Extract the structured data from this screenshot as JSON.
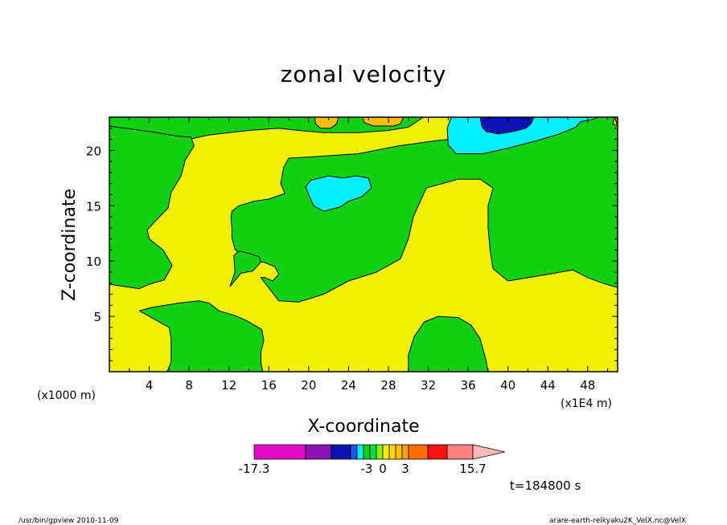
{
  "chart_data": {
    "type": "heatmap",
    "title": "zonal velocity",
    "xlabel": "X-coordinate",
    "ylabel": "Z-coordinate",
    "x_unit_label": "(x1E4 m)",
    "y_unit_label": "(x1000 m)",
    "xlim": [
      0,
      51
    ],
    "ylim": [
      0,
      23
    ],
    "xticks": [
      4,
      8,
      12,
      16,
      20,
      24,
      28,
      32,
      36,
      40,
      44,
      48
    ],
    "yticks": [
      5,
      10,
      15,
      20
    ],
    "grid": false,
    "regions": [
      {
        "name": "yellow",
        "polygon": [
          [
            0,
            0
          ],
          [
            51,
            0
          ],
          [
            51,
            23
          ],
          [
            0,
            23
          ]
        ]
      },
      {
        "name": "green",
        "polygon": [
          [
            0,
            22
          ],
          [
            3,
            21.6
          ],
          [
            8,
            21
          ],
          [
            10,
            21.4
          ],
          [
            14,
            21.8
          ],
          [
            17,
            22
          ],
          [
            19,
            21.8
          ],
          [
            21.5,
            21.6
          ],
          [
            25,
            21.6
          ],
          [
            28,
            21.8
          ],
          [
            30,
            22.1
          ],
          [
            31.5,
            23
          ],
          [
            0,
            23
          ]
        ]
      },
      {
        "name": "green",
        "polygon": [
          [
            0,
            7.9
          ],
          [
            3,
            7.5
          ],
          [
            4,
            7.9
          ],
          [
            5.5,
            8.3
          ],
          [
            6.3,
            9.6
          ],
          [
            5.4,
            11
          ],
          [
            4,
            12
          ],
          [
            3.8,
            12.8
          ],
          [
            4.6,
            13.6
          ],
          [
            5.9,
            14.8
          ],
          [
            6.2,
            16.2
          ],
          [
            7.2,
            17.7
          ],
          [
            7.6,
            19.1
          ],
          [
            8.5,
            20.4
          ],
          [
            8.2,
            21.2
          ],
          [
            6.7,
            21.3
          ],
          [
            4.8,
            21.6
          ],
          [
            2.5,
            21.9
          ],
          [
            0,
            22.2
          ]
        ]
      },
      {
        "name": "green",
        "polygon": [
          [
            51,
            7.6
          ],
          [
            49.5,
            8
          ],
          [
            48,
            8.5
          ],
          [
            46.5,
            9.2
          ],
          [
            44,
            8.8
          ],
          [
            40,
            8.2
          ],
          [
            38.5,
            9.3
          ],
          [
            38.2,
            11
          ],
          [
            38,
            13
          ],
          [
            38,
            15
          ],
          [
            38.5,
            16.6
          ],
          [
            37.2,
            17.4
          ],
          [
            35,
            17.4
          ],
          [
            31.8,
            16.6
          ],
          [
            30.5,
            14
          ],
          [
            30,
            12
          ],
          [
            29.2,
            10.2
          ],
          [
            26.8,
            9
          ],
          [
            24,
            8.2
          ],
          [
            21.5,
            7
          ],
          [
            19,
            6.3
          ],
          [
            17,
            6.4
          ],
          [
            15.2,
            8.5
          ],
          [
            15.6,
            8.5
          ],
          [
            16.4,
            8.2
          ],
          [
            17,
            8.8
          ],
          [
            16.6,
            9.5
          ],
          [
            15.5,
            9.9
          ],
          [
            14.4,
            10
          ],
          [
            13.5,
            10.1
          ],
          [
            12.6,
            11.1
          ],
          [
            12.3,
            12.1
          ],
          [
            12.3,
            12.9
          ],
          [
            12.2,
            14
          ],
          [
            12.3,
            14.5
          ],
          [
            13,
            15
          ],
          [
            14.5,
            15.4
          ],
          [
            16,
            15.6
          ],
          [
            17.6,
            16.1
          ],
          [
            17.2,
            17
          ],
          [
            17.5,
            18.5
          ],
          [
            18,
            19.3
          ],
          [
            20,
            19.4
          ],
          [
            25,
            19.7
          ],
          [
            29,
            20.4
          ],
          [
            33,
            20.9
          ],
          [
            37,
            21.2
          ],
          [
            34.5,
            22
          ],
          [
            35.3,
            23
          ],
          [
            51,
            23
          ]
        ]
      },
      {
        "name": "green",
        "polygon": [
          [
            12.1,
            7.7
          ],
          [
            12.6,
            9
          ],
          [
            12.5,
            10.5
          ],
          [
            13,
            10.9
          ],
          [
            14,
            10.7
          ],
          [
            15,
            10.4
          ],
          [
            15.2,
            9.9
          ],
          [
            14.4,
            9.1
          ],
          [
            13.2,
            8.9
          ]
        ]
      },
      {
        "name": "green",
        "polygon": [
          [
            4.2,
            0
          ],
          [
            5.8,
            0
          ],
          [
            6.2,
            0.9
          ],
          [
            6.2,
            1.9
          ],
          [
            6.2,
            3
          ],
          [
            6,
            4
          ],
          [
            4,
            5
          ],
          [
            3,
            5.5
          ],
          [
            4.2,
            5.8
          ],
          [
            7,
            6.2
          ],
          [
            9,
            6.4
          ],
          [
            10,
            6.2
          ],
          [
            11,
            5.5
          ],
          [
            12.5,
            5.1
          ],
          [
            13.8,
            4.6
          ],
          [
            15.3,
            3.8
          ],
          [
            15.5,
            2.8
          ],
          [
            15.2,
            1.8
          ],
          [
            15.2,
            0.8
          ],
          [
            15.4,
            0
          ]
        ]
      },
      {
        "name": "green",
        "polygon": [
          [
            30,
            0
          ],
          [
            38,
            0
          ],
          [
            37.8,
            1
          ],
          [
            37.5,
            2
          ],
          [
            37.2,
            3
          ],
          [
            36.3,
            4.2
          ],
          [
            35,
            4.9
          ],
          [
            33,
            5
          ],
          [
            31.6,
            4.5
          ],
          [
            30.6,
            3.2
          ],
          [
            30,
            1.5
          ]
        ]
      },
      {
        "name": "cyan",
        "polygon": [
          [
            19.7,
            16.7
          ],
          [
            20.2,
            17.3
          ],
          [
            22,
            17.7
          ],
          [
            23.4,
            17.5
          ],
          [
            24.8,
            17.7
          ],
          [
            26,
            17.5
          ],
          [
            26.3,
            16.6
          ],
          [
            25.3,
            15.8
          ],
          [
            24,
            15.4
          ],
          [
            23.2,
            14.9
          ],
          [
            21.5,
            14.5
          ],
          [
            20.5,
            15
          ],
          [
            20,
            16
          ]
        ]
      },
      {
        "name": "cyan",
        "polygon": [
          [
            34.3,
            23
          ],
          [
            33.9,
            22
          ],
          [
            34,
            20.5
          ],
          [
            34.8,
            19.7
          ],
          [
            37.5,
            19.7
          ],
          [
            40,
            20.2
          ],
          [
            43,
            20.9
          ],
          [
            45.2,
            21.5
          ],
          [
            46.8,
            22.1
          ],
          [
            47.3,
            22.6
          ],
          [
            48.5,
            22.8
          ],
          [
            49,
            23
          ]
        ]
      },
      {
        "name": "blue",
        "polygon": [
          [
            37.2,
            23
          ],
          [
            37.4,
            22.1
          ],
          [
            37.8,
            21.7
          ],
          [
            39,
            21.5
          ],
          [
            40.5,
            21.7
          ],
          [
            41.8,
            22
          ],
          [
            42.3,
            22.4
          ],
          [
            42.6,
            23
          ]
        ]
      },
      {
        "name": "orange",
        "polygon": [
          [
            20.6,
            23
          ],
          [
            20.7,
            22.4
          ],
          [
            21.2,
            22
          ],
          [
            22.2,
            22
          ],
          [
            22.8,
            22.4
          ],
          [
            23,
            23
          ]
        ]
      },
      {
        "name": "orange",
        "polygon": [
          [
            25.4,
            23
          ],
          [
            25.6,
            22.5
          ],
          [
            26.5,
            22.2
          ],
          [
            28.5,
            22.2
          ],
          [
            29.2,
            22.4
          ],
          [
            29.5,
            23
          ]
        ]
      },
      {
        "name": "orange",
        "polygon": [
          [
            50.7,
            23
          ],
          [
            50.5,
            22.4
          ],
          [
            51,
            22.2
          ]
        ]
      }
    ],
    "colorbar": {
      "labels": [
        {
          "text": "-17.3",
          "value": -17.3
        },
        {
          "text": "-3",
          "value": -3
        },
        {
          "text": "0",
          "value": 0
        },
        {
          "text": "3",
          "value": 3
        },
        {
          "text": "15.7",
          "value": 15.7
        }
      ],
      "colors": [
        "#e80ac6",
        "#8a14b5",
        "#0a14b5",
        "#1955f0",
        "#00f0ff",
        "#10d010",
        "#00e050",
        "#88f000",
        "#f0f000",
        "#ffd800",
        "#ffbe00",
        "#ff9f00",
        "#ff6c00",
        "#ff1010",
        "#ff7f7f",
        "#ffb8b8"
      ],
      "widths": [
        8,
        4,
        3,
        1,
        1,
        1,
        1,
        1,
        1,
        1,
        1,
        1,
        3,
        3,
        4,
        5
      ]
    },
    "palette": {
      "yellow": "#f0f000",
      "green": "#10d010",
      "cyan": "#00f0ff",
      "blue": "#0a14b5",
      "orange": "#ffbe00"
    }
  },
  "time_label": "t=184800 s",
  "footer_left": "/usr/bin/gpview   2010-11-09",
  "footer_right": "arare-earth-reikyaku2K_VelX.nc@VelX"
}
